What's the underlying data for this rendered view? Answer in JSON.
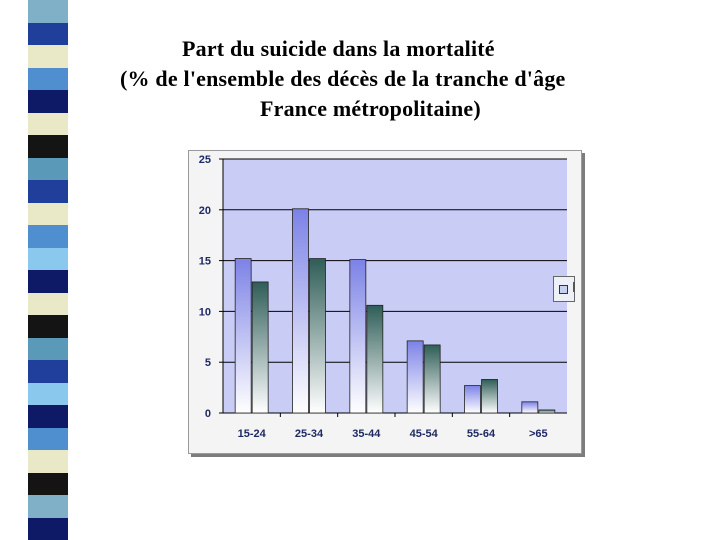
{
  "slide": {
    "title_lines": [
      "Part du suicide dans la mortalité",
      "(% de l'ensemble des décès de la tranche d'âge",
      "France métropolitaine)"
    ],
    "stripe_colors": [
      "#7fb0c8",
      "#1f3f9a",
      "#e9e9c8",
      "#4f8fd0",
      "#0e1a66",
      "#e9e9c8",
      "#141414",
      "#5a9ab8",
      "#1f3f9a",
      "#e9e9c8",
      "#4f8fd0",
      "#8ac8ee",
      "#0e1a66",
      "#e9e9c8",
      "#141414",
      "#5a9ab8",
      "#1f3f9a",
      "#8ac8ee",
      "#0e1a66",
      "#4f8fd0",
      "#e9e9c8",
      "#141414",
      "#7fb0c8",
      "#0e1a66"
    ]
  },
  "chart_data": {
    "type": "bar",
    "categories": [
      "15-24",
      "25-34",
      "35-44",
      "45-54",
      "55-64",
      ">65"
    ],
    "series": [
      {
        "values": [
          15.2,
          20.1,
          15.1,
          7.1,
          2.7,
          1.1
        ],
        "color_top": "#7c82e6",
        "color_bottom": "#ffffff"
      },
      {
        "values": [
          12.9,
          15.2,
          10.6,
          6.7,
          3.3,
          0.3
        ],
        "color_top": "#2f5d57",
        "color_bottom": "#ffffff"
      }
    ],
    "y_ticks": [
      "0",
      "5",
      "10",
      "15",
      "20",
      "25"
    ],
    "ylim": [
      0,
      25
    ],
    "grid": true,
    "plot_background": "#c9cdf5",
    "legend_position": "right"
  }
}
